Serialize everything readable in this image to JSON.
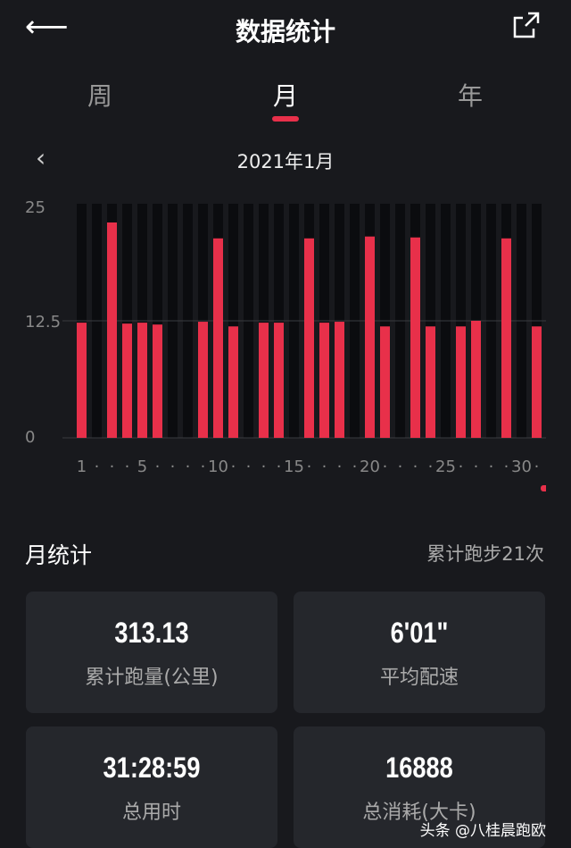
{
  "header": {
    "title": "数据统计",
    "back_icon": "arrow-left-icon",
    "share_icon": "share-icon"
  },
  "tabs": [
    {
      "label": "周"
    },
    {
      "label": "月",
      "active": true
    },
    {
      "label": "年"
    }
  ],
  "period": {
    "label": "2021年1月",
    "prev_icon": "chevron-left-icon"
  },
  "accent": "#e8304a",
  "chart_data": {
    "type": "bar",
    "x": [
      1,
      2,
      3,
      4,
      5,
      6,
      7,
      8,
      9,
      10,
      11,
      12,
      13,
      14,
      15,
      16,
      17,
      18,
      19,
      20,
      21,
      22,
      23,
      24,
      25,
      26,
      27,
      28,
      29,
      30,
      31
    ],
    "values": [
      12.3,
      0,
      23,
      12.2,
      12.3,
      12.1,
      0,
      0,
      12.4,
      21.3,
      11.9,
      0,
      12.3,
      12.3,
      0,
      21.3,
      12.3,
      12.4,
      0,
      21.5,
      11.9,
      0,
      21.4,
      11.9,
      0,
      11.9,
      12.5,
      0,
      21.3,
      0,
      11.9
    ],
    "ylim": [
      0,
      25
    ],
    "yticks": [
      "0",
      "12.5",
      "25"
    ],
    "xticks": [
      "1",
      "5",
      "10",
      "15",
      "20",
      "25",
      "30"
    ],
    "grid": true
  },
  "monthly": {
    "title": "月统计",
    "count": "累计跑步21次",
    "cards": [
      {
        "value": "313.13",
        "label": "累计跑量(公里)"
      },
      {
        "value": "6'01\"",
        "label": "平均配速"
      },
      {
        "value": "31:28:59",
        "label": "总用时"
      },
      {
        "value": "16888",
        "label": "总消耗(大卡)"
      }
    ]
  },
  "watermark": "头条 @八桂晨跑欧"
}
